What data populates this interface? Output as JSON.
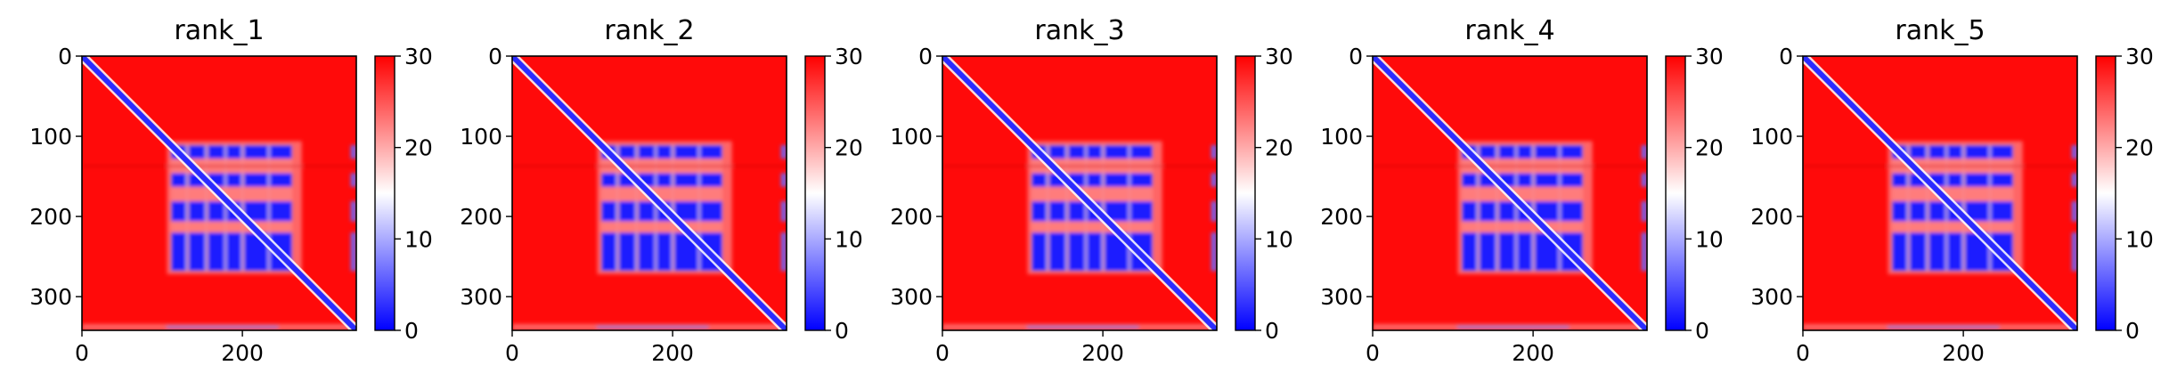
{
  "chart_data": [
    {
      "type": "heatmap",
      "title": "rank_1",
      "x_ticks": [
        0,
        200
      ],
      "y_ticks": [
        0,
        100,
        200,
        300
      ],
      "colorbar": {
        "ticks": [
          0,
          10,
          20,
          30
        ],
        "range": [
          0,
          30
        ],
        "colormap": "bwr",
        "low_color": "#0000ff",
        "mid_color": "#ffffff",
        "high_color": "#ff0000"
      },
      "xlim": [
        0,
        342
      ],
      "ylim": [
        342,
        0
      ],
      "grid": false
    },
    {
      "type": "heatmap",
      "title": "rank_2",
      "x_ticks": [
        0,
        200
      ],
      "y_ticks": [
        0,
        100,
        200,
        300
      ],
      "colorbar": {
        "ticks": [
          0,
          10,
          20,
          30
        ],
        "range": [
          0,
          30
        ],
        "colormap": "bwr",
        "low_color": "#0000ff",
        "mid_color": "#ffffff",
        "high_color": "#ff0000"
      },
      "xlim": [
        0,
        342
      ],
      "ylim": [
        342,
        0
      ],
      "grid": false
    },
    {
      "type": "heatmap",
      "title": "rank_3",
      "x_ticks": [
        0,
        200
      ],
      "y_ticks": [
        0,
        100,
        200,
        300
      ],
      "colorbar": {
        "ticks": [
          0,
          10,
          20,
          30
        ],
        "range": [
          0,
          30
        ],
        "colormap": "bwr",
        "low_color": "#0000ff",
        "mid_color": "#ffffff",
        "high_color": "#ff0000"
      },
      "xlim": [
        0,
        342
      ],
      "ylim": [
        342,
        0
      ],
      "grid": false
    },
    {
      "type": "heatmap",
      "title": "rank_4",
      "x_ticks": [
        0,
        200
      ],
      "y_ticks": [
        0,
        100,
        200,
        300
      ],
      "colorbar": {
        "ticks": [
          0,
          10,
          20,
          30
        ],
        "range": [
          0,
          30
        ],
        "colormap": "bwr",
        "low_color": "#0000ff",
        "mid_color": "#ffffff",
        "high_color": "#ff0000"
      },
      "xlim": [
        0,
        342
      ],
      "ylim": [
        342,
        0
      ],
      "grid": false
    },
    {
      "type": "heatmap",
      "title": "rank_5",
      "x_ticks": [
        0,
        200
      ],
      "y_ticks": [
        0,
        100,
        200,
        300
      ],
      "colorbar": {
        "ticks": [
          0,
          10,
          20,
          30
        ],
        "range": [
          0,
          30
        ],
        "colormap": "bwr",
        "low_color": "#0000ff",
        "mid_color": "#ffffff",
        "high_color": "#ff0000"
      },
      "xlim": [
        0,
        342
      ],
      "ylim": [
        342,
        0
      ],
      "grid": false
    }
  ]
}
